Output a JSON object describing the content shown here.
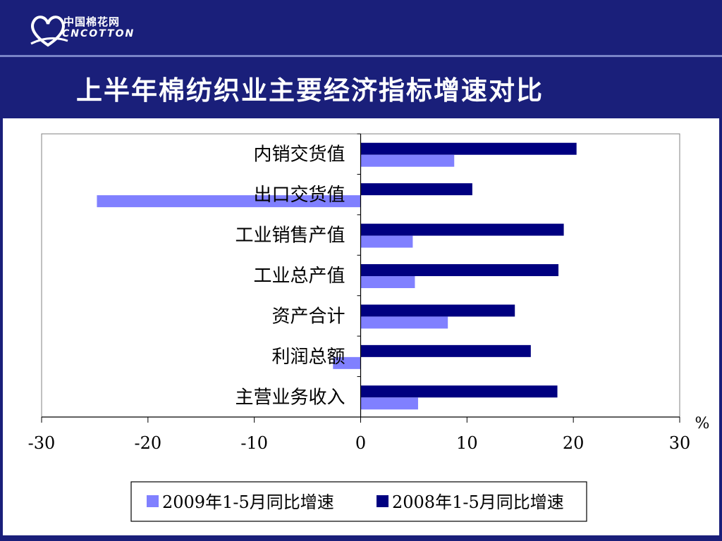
{
  "brand": {
    "logo_cn": "中国棉花网",
    "logo_en": "CNCOTTON"
  },
  "slide": {
    "title": "上半年棉纺织业主要经济指标增速对比"
  },
  "colors": {
    "background": "#1a1f7a",
    "series_2009": "#8080ff",
    "series_2008": "#000080"
  },
  "chart_data": {
    "type": "bar",
    "orientation": "horizontal",
    "categories": [
      "内销交货值",
      "出口交货值",
      "工业销售产值",
      "工业总产值",
      "资产合计",
      "利润总额",
      "主营业务收入"
    ],
    "series": [
      {
        "name": "2009年1-5月同比增速",
        "values": [
          8.8,
          -24.8,
          4.9,
          5.1,
          8.2,
          -2.6,
          5.4
        ]
      },
      {
        "name": "2008年1-5月同比增速",
        "values": [
          20.3,
          10.5,
          19.1,
          18.6,
          14.5,
          16.0,
          18.5
        ]
      }
    ],
    "xlim": [
      -30,
      30
    ],
    "xticks": [
      -30,
      -20,
      -10,
      0,
      10,
      20,
      30
    ],
    "xtick_labels": [
      "-30",
      "-20",
      "-10",
      "0",
      "10",
      "20",
      "30"
    ],
    "unit_label": "%",
    "grid": false,
    "legend_position": "bottom"
  }
}
